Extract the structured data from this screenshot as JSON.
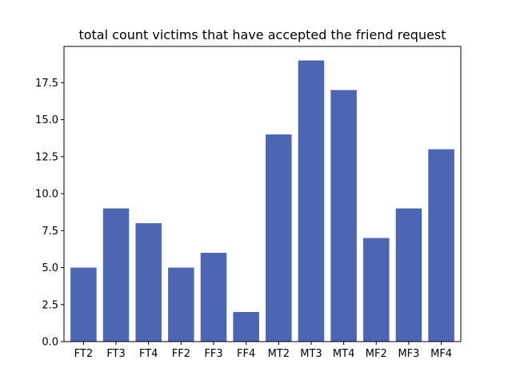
{
  "chart_data": {
    "type": "bar",
    "title": "total count victims that have accepted the friend request",
    "xlabel": "",
    "ylabel": "",
    "categories": [
      "FT2",
      "FT3",
      "FT4",
      "FF2",
      "FF3",
      "FF4",
      "MT2",
      "MT3",
      "MT4",
      "MF2",
      "MF3",
      "MF4"
    ],
    "values": [
      5,
      9,
      8,
      5,
      6,
      2,
      14,
      19,
      17,
      7,
      9,
      13
    ],
    "ylim": [
      0,
      19.95
    ],
    "yticks": [
      0,
      2.5,
      5,
      7.5,
      10,
      12.5,
      15,
      17.5
    ],
    "ytick_labels": [
      "0.0",
      "2.5",
      "5.0",
      "7.5",
      "10.0",
      "12.5",
      "15.0",
      "17.5"
    ],
    "bar_color": "#4c66b3",
    "grid": false,
    "legend": "none"
  }
}
